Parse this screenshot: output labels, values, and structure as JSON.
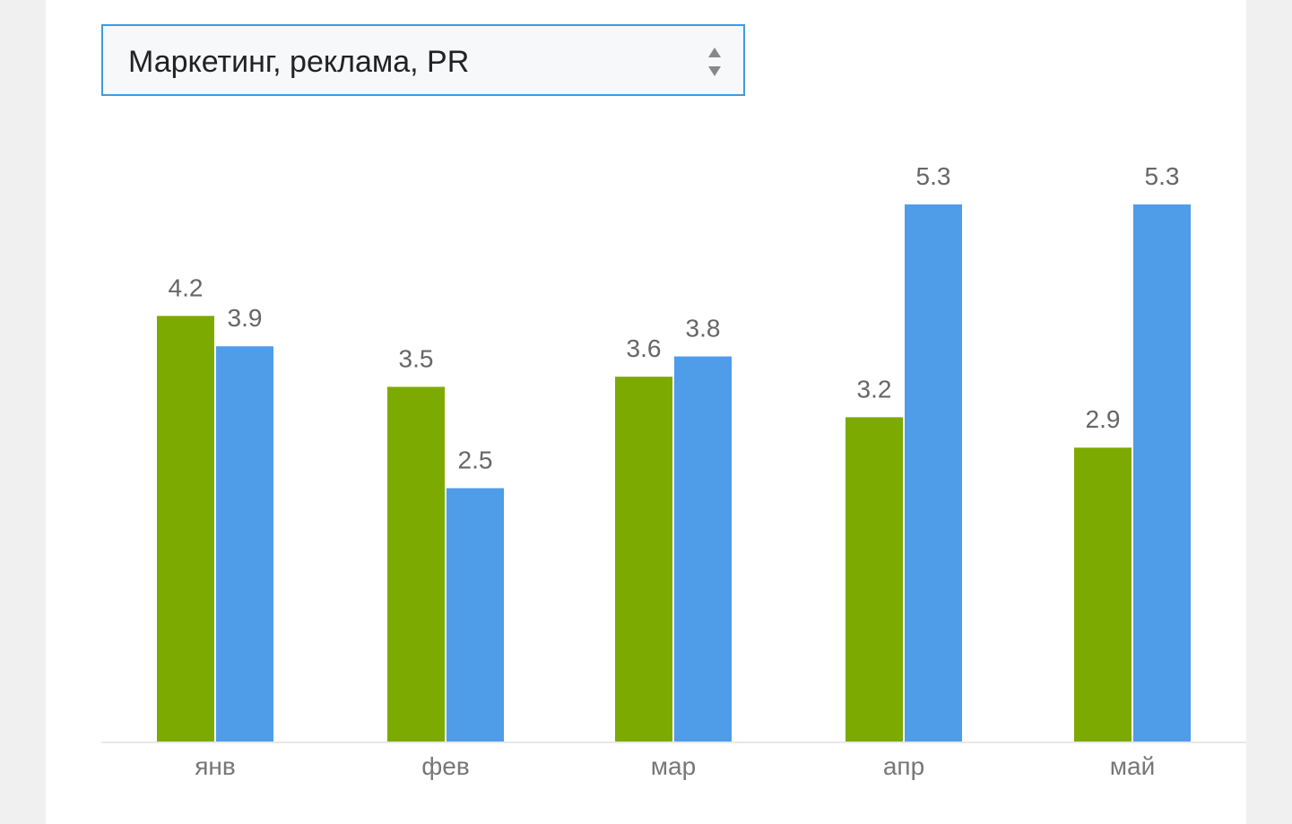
{
  "filter": {
    "selected": "Маркетинг, реклама, PR",
    "arrows_icon": "up-down-sort-icon"
  },
  "colors": {
    "series1": "#7daa01",
    "series2": "#4f9ce9",
    "axis": "#e8e8e8",
    "select_border": "#3e9be0"
  },
  "chart_data": {
    "type": "bar",
    "title": "",
    "xlabel": "",
    "ylabel": "",
    "categories": [
      "янв",
      "фев",
      "мар",
      "апр",
      "май"
    ],
    "series": [
      {
        "values": [
          4.2,
          3.5,
          3.6,
          3.2,
          2.9
        ]
      },
      {
        "values": [
          3.9,
          2.5,
          3.8,
          5.3,
          5.3
        ]
      }
    ],
    "ylim": [
      0,
      5.3
    ],
    "grid": false,
    "data_labels": true
  }
}
